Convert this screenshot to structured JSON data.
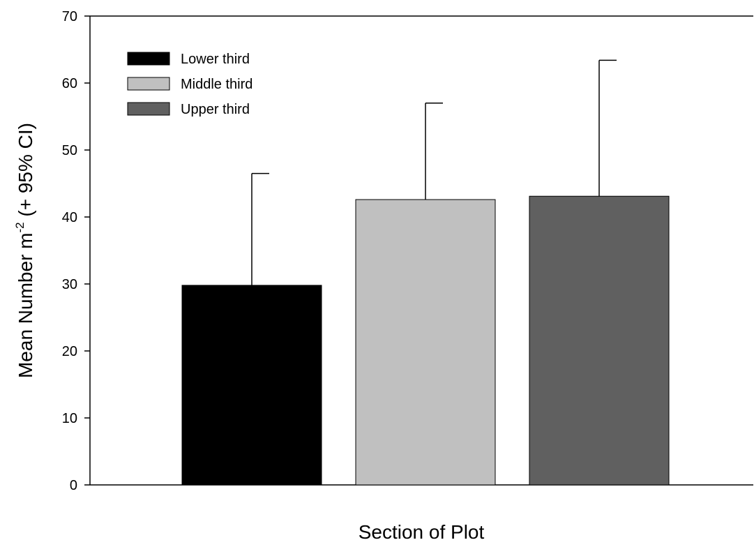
{
  "chart_data": {
    "type": "bar",
    "title": "",
    "xlabel": "Section of Plot",
    "ylabel": {
      "pre": "Mean Number m",
      "sup": "-2",
      "post": " (+ 95% CI)"
    },
    "ylim": [
      0,
      70
    ],
    "yticks": [
      0,
      10,
      20,
      30,
      40,
      50,
      60,
      70
    ],
    "grid": false,
    "legend_position": "top-left",
    "series": [
      {
        "name": "Lower third",
        "value": 29.8,
        "ci_upper": 46.5,
        "color": "#000000"
      },
      {
        "name": "Middle third",
        "value": 42.6,
        "ci_upper": 57.0,
        "color": "#c0c0c0"
      },
      {
        "name": "Upper third",
        "value": 43.1,
        "ci_upper": 63.4,
        "color": "#606060"
      }
    ]
  }
}
